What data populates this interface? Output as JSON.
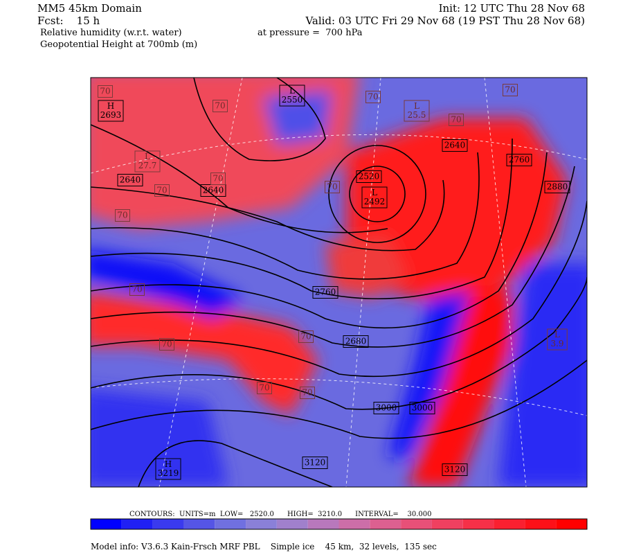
{
  "header": {
    "domain": "MM5 45km Domain",
    "forecast": "Fcst:    15 h",
    "field1": "Relative humidity (w.r.t. water)",
    "field2": "Geopotential Height at 700mb (m)",
    "init": "Init: 12 UTC Thu 28 Nov 68",
    "valid": "Valid: 03 UTC Fri 29 Nov 68 (19 PST Thu 28 Nov 68)",
    "pressure": "at pressure =  700 hPa"
  },
  "map_labels": [
    {
      "lines": [
        "H",
        "2693"
      ]
    },
    {
      "lines": [
        "L",
        "2550"
      ]
    },
    {
      "lines": [
        "L",
        "2492"
      ]
    },
    {
      "lines": [
        "2520"
      ]
    },
    {
      "lines": [
        "2640"
      ]
    },
    {
      "lines": [
        "2640"
      ]
    },
    {
      "lines": [
        "2640"
      ]
    },
    {
      "lines": [
        "2760"
      ]
    },
    {
      "lines": [
        "2760"
      ]
    },
    {
      "lines": [
        "2880"
      ]
    },
    {
      "lines": [
        "2680"
      ]
    },
    {
      "lines": [
        "3000"
      ]
    },
    {
      "lines": [
        "3000"
      ]
    },
    {
      "lines": [
        "3120"
      ]
    },
    {
      "lines": [
        "3120"
      ]
    },
    {
      "lines": [
        "H",
        "3219"
      ]
    }
  ],
  "rh_labels": [
    {
      "lines": [
        "70"
      ]
    },
    {
      "lines": [
        "70"
      ]
    },
    {
      "lines": [
        "70"
      ]
    },
    {
      "lines": [
        "70"
      ]
    },
    {
      "lines": [
        "70"
      ]
    },
    {
      "lines": [
        "70"
      ]
    },
    {
      "lines": [
        "70"
      ]
    },
    {
      "lines": [
        "70"
      ]
    },
    {
      "lines": [
        "70"
      ]
    },
    {
      "lines": [
        "70"
      ]
    },
    {
      "lines": [
        "70"
      ]
    },
    {
      "lines": [
        "70"
      ]
    },
    {
      "lines": [
        "70"
      ]
    },
    {
      "lines": [
        "70"
      ]
    },
    {
      "lines": [
        "L",
        "27.7"
      ]
    },
    {
      "lines": [
        "L",
        "25.5"
      ]
    },
    {
      "lines": [
        "L",
        "3.9"
      ]
    }
  ],
  "contours_info": "CONTOURS:  UNITS=m  LOW=   2520.0      HIGH=  3210.0      INTERVAL=    30.000",
  "colorbar": {
    "colors": [
      "#0000ff",
      "#2020f4",
      "#3a3aee",
      "#5555e6",
      "#7070e0",
      "#8a80d8",
      "#a080cc",
      "#b878bc",
      "#cc6ea8",
      "#dc6090",
      "#e85078",
      "#f04060",
      "#f63048",
      "#fa2030",
      "#fd1018",
      "#ff0000"
    ]
  },
  "footer": "Model info: V3.6.3 Kain-Frsch MRF PBL    Simple ice    45 km,  32 levels,  135 sec"
}
